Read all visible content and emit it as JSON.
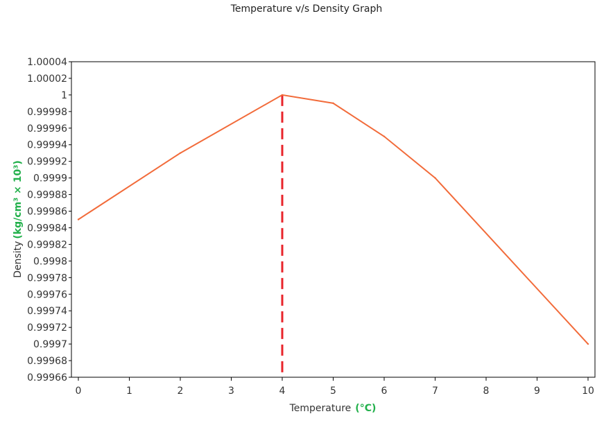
{
  "chart_data": {
    "type": "line",
    "title": "Temperature v/s Density Graph",
    "xlabel": "Temperature",
    "xlabel_unit": "(°C)",
    "ylabel": "Density",
    "ylabel_unit": "(kg/cm³ × 10³)",
    "xlim": [
      0,
      10
    ],
    "ylim": [
      0.99966,
      1.00004
    ],
    "x_ticks": [
      "0",
      "1",
      "2",
      "3",
      "4",
      "5",
      "6",
      "7",
      "8",
      "9",
      "10"
    ],
    "y_ticks": [
      "0.99966",
      "0.99968",
      "0.9997",
      "0.99972",
      "0.99974",
      "0.99976",
      "0.99978",
      "0.9998",
      "0.99982",
      "0.99984",
      "0.99986",
      "0.99988",
      "0.9999",
      "0.99992",
      "0.99994",
      "0.99996",
      "0.99998",
      "1",
      "1.00002",
      "1.00004"
    ],
    "grid": false,
    "series": [
      {
        "name": "Density",
        "color": "#f26b3a",
        "x": [
          0,
          2,
          4,
          5,
          6,
          7,
          10
        ],
        "values": [
          0.99985,
          0.99993,
          1.0,
          0.99999,
          0.99995,
          0.9999,
          0.9997
        ]
      }
    ],
    "marker_line": {
      "x": 4,
      "color": "#e8232a",
      "style": "dashed"
    }
  }
}
